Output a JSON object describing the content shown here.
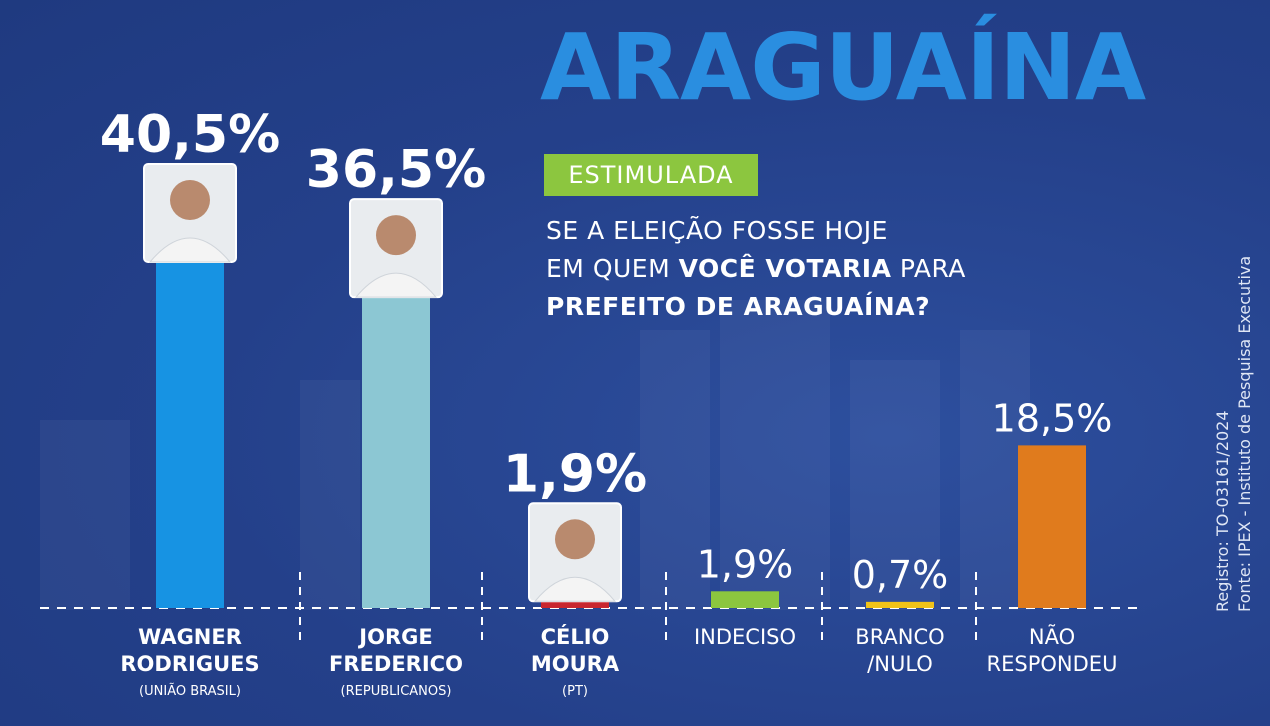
{
  "title": "ARAGUAÍNA",
  "badge": "ESTIMULADA",
  "question": {
    "line1": "SE A ELEIÇÃO FOSSE HOJE",
    "line2_pre": "EM QUEM ",
    "line2_bold": "VOCÊ VOTARIA",
    "line2_post": " PARA",
    "line3": "PREFEITO DE ARAGUAÍNA?"
  },
  "source": {
    "line1": "Registro: TO-03161/2024",
    "line2": "Fonte: IPEX - Instituto de Pesquisa Executiva"
  },
  "chart_data": {
    "type": "bar",
    "categories": [
      "WAGNER RODRIGUES",
      "JORGE FREDERICO",
      "CÉLIO MOURA",
      "INDECISO",
      "BRANCO /NULO",
      "NÃO RESPONDEU"
    ],
    "values": [
      40.5,
      36.5,
      1.9,
      1.9,
      0.7,
      18.5
    ],
    "value_labels": [
      "40,5%",
      "36,5%",
      "1,9%",
      "1,9%",
      "0,7%",
      "18,5%"
    ],
    "bars": [
      {
        "name_lines": [
          "WAGNER",
          "RODRIGUES"
        ],
        "party": "(UNIÃO BRASIL)",
        "color": "#1793e3",
        "photo": true,
        "label_style": "large"
      },
      {
        "name_lines": [
          "JORGE",
          "FREDERICO"
        ],
        "party": "(REPUBLICANOS)",
        "color": "#8cc7d3",
        "photo": true,
        "label_style": "large"
      },
      {
        "name_lines": [
          "CÉLIO",
          "MOURA"
        ],
        "party": "(PT)",
        "color": "#c8262f",
        "photo": true,
        "label_style": "large"
      },
      {
        "name_lines": [
          "INDECISO"
        ],
        "party": "",
        "color": "#8cc63f",
        "photo": false,
        "label_style": "light"
      },
      {
        "name_lines": [
          "BRANCO",
          "/NULO"
        ],
        "party": "",
        "color": "#f2c318",
        "photo": false,
        "label_style": "light"
      },
      {
        "name_lines": [
          "NÃO",
          "RESPONDEU"
        ],
        "party": "",
        "color": "#e07b1d",
        "photo": false,
        "label_style": "light"
      }
    ],
    "xlabel": "",
    "ylabel": "",
    "grid": false,
    "legend": "none"
  }
}
